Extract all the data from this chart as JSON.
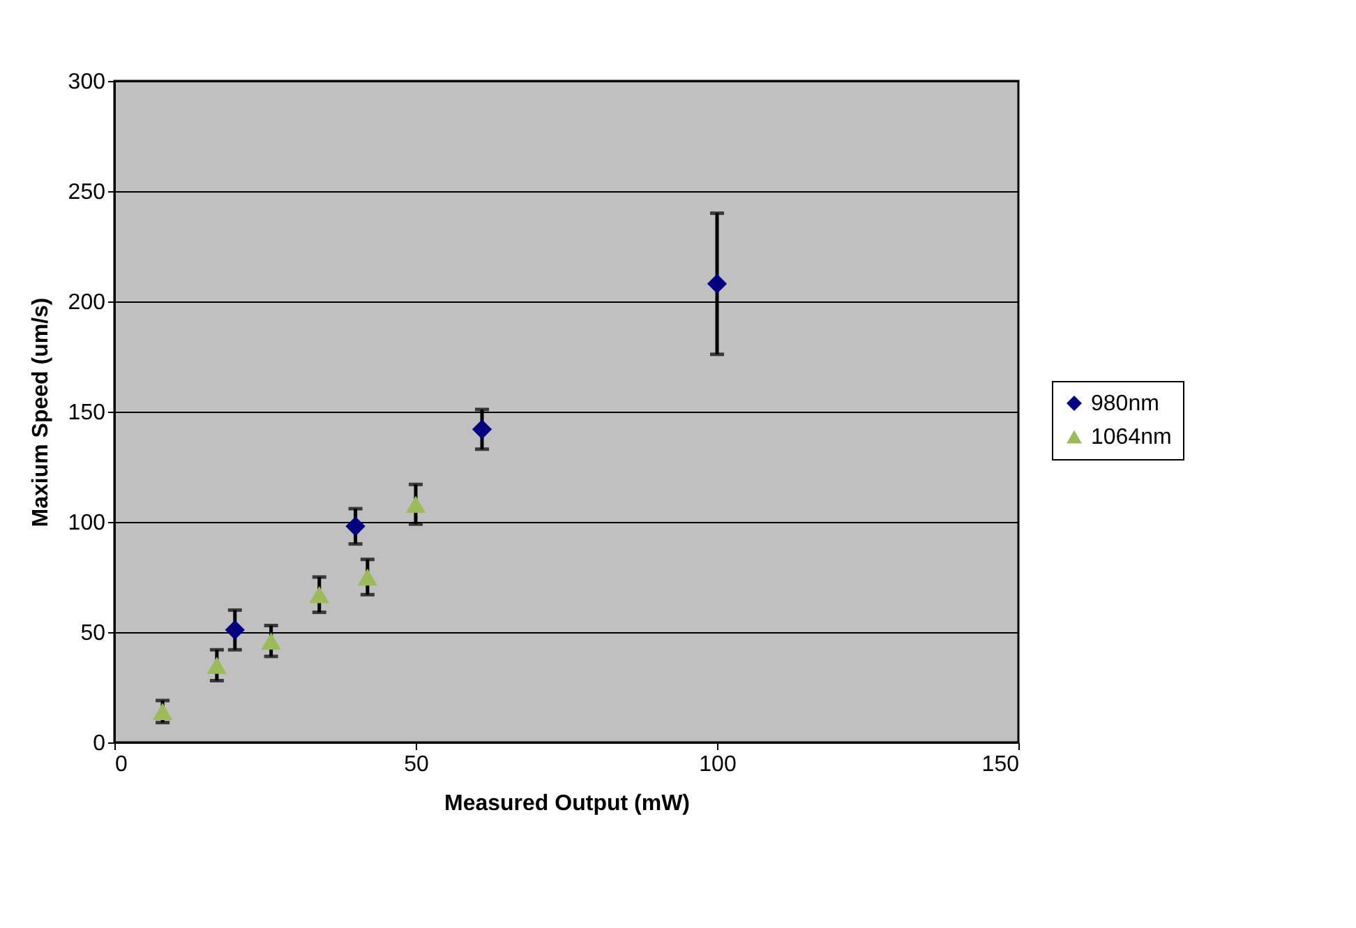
{
  "chart_data": {
    "type": "scatter",
    "xlabel": "Measured Output (mW)",
    "ylabel": "Maxium Speed (um/s)",
    "xlim": [
      0,
      150
    ],
    "xticks": [
      0,
      50,
      100,
      150
    ],
    "ylim": [
      0,
      300
    ],
    "yticks": [
      0,
      50,
      100,
      150,
      200,
      250,
      300
    ],
    "grid": "y",
    "legend": "right",
    "series": [
      {
        "name": "980nm",
        "color": "#000080",
        "marker": "diamond",
        "x": [
          20,
          40,
          61,
          100
        ],
        "values": [
          51,
          98,
          142,
          208
        ],
        "errors": [
          9,
          8,
          9,
          32
        ]
      },
      {
        "name": "1064nm",
        "color": "#9bbb59",
        "marker": "triangle",
        "x": [
          8,
          17,
          26,
          34,
          42,
          50
        ],
        "values": [
          14,
          35,
          46,
          67,
          75,
          108
        ],
        "errors": [
          5,
          7,
          7,
          8,
          8,
          9
        ]
      }
    ]
  }
}
